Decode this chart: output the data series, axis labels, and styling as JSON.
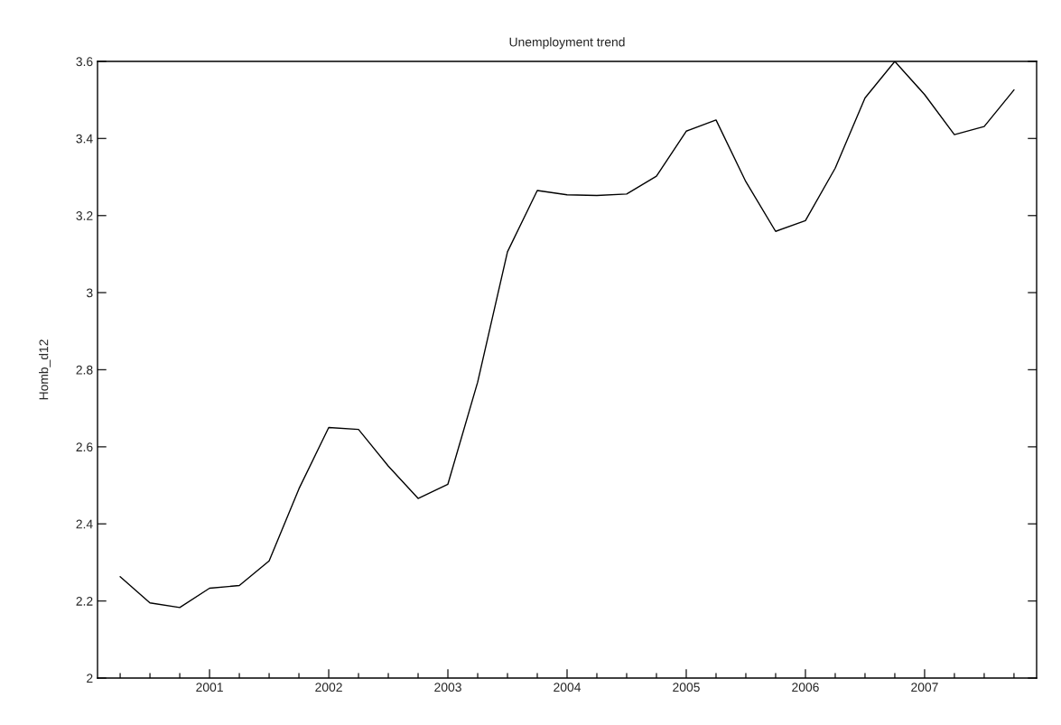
{
  "chart_data": {
    "type": "line",
    "title": "Unemployment trend",
    "ylabel": "Homb_d12",
    "x": [
      2000.25,
      2000.5,
      2000.75,
      2001.0,
      2001.25,
      2001.5,
      2001.75,
      2002.0,
      2002.25,
      2002.5,
      2002.75,
      2003.0,
      2003.25,
      2003.5,
      2003.75,
      2004.0,
      2004.25,
      2004.5,
      2004.75,
      2005.0,
      2005.25,
      2005.5,
      2005.75,
      2006.0,
      2006.25,
      2006.5,
      2006.75,
      2007.0,
      2007.25,
      2007.5,
      2007.75
    ],
    "series": [
      {
        "color": "#000000",
        "values": [
          2.263,
          2.195,
          2.183,
          2.233,
          2.24,
          2.304,
          2.491,
          2.65,
          2.645,
          2.55,
          2.466,
          2.503,
          2.768,
          3.106,
          3.265,
          3.254,
          3.252,
          3.256,
          3.302,
          3.419,
          3.448,
          3.288,
          3.159,
          3.187,
          3.323,
          3.505,
          3.6,
          3.514,
          3.41,
          3.431,
          3.526
        ]
      }
    ],
    "xlim": [
      2000.06,
      2007.94
    ],
    "xticks": [
      {
        "value": 2000.25,
        "label": null
      },
      {
        "value": 2000.5,
        "label": null
      },
      {
        "value": 2000.75,
        "label": null
      },
      2001,
      {
        "value": 2001.25,
        "label": null
      },
      {
        "value": 2001.5,
        "label": null
      },
      {
        "value": 2001.75,
        "label": null
      },
      2002,
      {
        "value": 2002.25,
        "label": null
      },
      {
        "value": 2002.5,
        "label": null
      },
      {
        "value": 2002.75,
        "label": null
      },
      2003,
      {
        "value": 2003.25,
        "label": null
      },
      {
        "value": 2003.5,
        "label": null
      },
      {
        "value": 2003.75,
        "label": null
      },
      2004,
      {
        "value": 2004.25,
        "label": null
      },
      {
        "value": 2004.5,
        "label": null
      },
      {
        "value": 2004.75,
        "label": null
      },
      2005,
      {
        "value": 2005.25,
        "label": null
      },
      {
        "value": 2005.5,
        "label": null
      },
      {
        "value": 2005.75,
        "label": null
      },
      2006,
      {
        "value": 2006.25,
        "label": null
      },
      {
        "value": 2006.5,
        "label": null
      },
      {
        "value": 2006.75,
        "label": null
      },
      2007,
      {
        "value": 2007.25,
        "label": null
      },
      {
        "value": 2007.5,
        "label": null
      },
      {
        "value": 2007.75,
        "label": null
      }
    ],
    "ylim": [
      2,
      3.6
    ],
    "yticks": [
      2,
      2.2,
      2.4,
      2.6,
      2.8,
      3,
      3.2,
      3.4,
      3.6
    ],
    "grid": false,
    "marker": "none",
    "line_style": "solid"
  }
}
